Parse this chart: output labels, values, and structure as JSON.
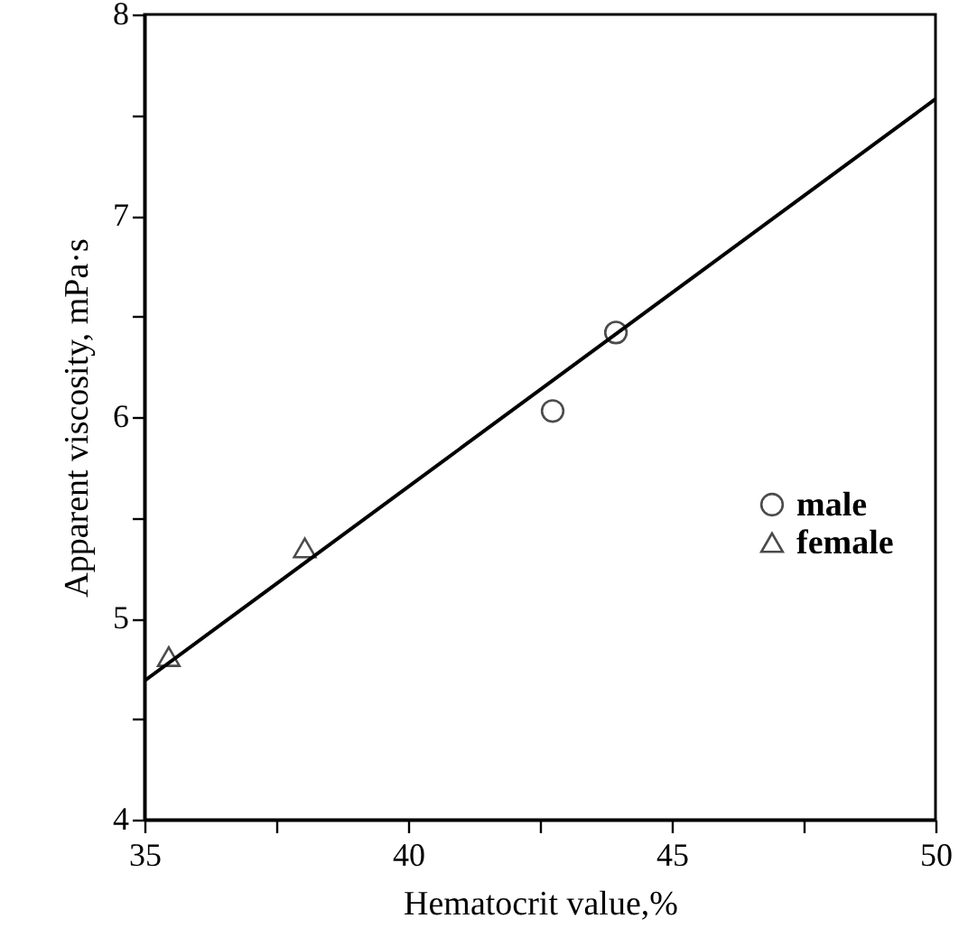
{
  "chart_data": {
    "type": "scatter",
    "xlabel": "Hematocrit value,%",
    "ylabel": "Apparent viscosity, mPa·s",
    "xlim": [
      35,
      50
    ],
    "ylim": [
      4,
      8
    ],
    "xticks": [
      35,
      {
        "value": 37.5,
        "label": null
      },
      40,
      {
        "value": 42.5,
        "label": null
      },
      45,
      {
        "value": 47.5,
        "label": null
      },
      50
    ],
    "yticks": [
      4,
      {
        "value": 4.5,
        "label": null
      },
      5,
      {
        "value": 5.5,
        "label": null
      },
      6,
      {
        "value": 6.5,
        "label": null
      },
      7,
      {
        "value": 7.5,
        "label": null
      },
      8
    ],
    "grid": false,
    "legend": "right",
    "series": [
      {
        "name": "male",
        "marker": "circle",
        "color": "#000000",
        "x": [
          42.74,
          43.94
        ],
        "values": [
          6.03,
          6.42
        ]
      },
      {
        "name": "female",
        "marker": "triangle",
        "color": "#000000",
        "x": [
          35.46,
          38.04
        ],
        "values": [
          4.81,
          5.35
        ]
      },
      {
        "type": "line",
        "line_style": "solid",
        "marker": "none",
        "color": "#000000",
        "x": [
          35,
          50
        ],
        "values": [
          4.69,
          7.58
        ]
      }
    ]
  }
}
